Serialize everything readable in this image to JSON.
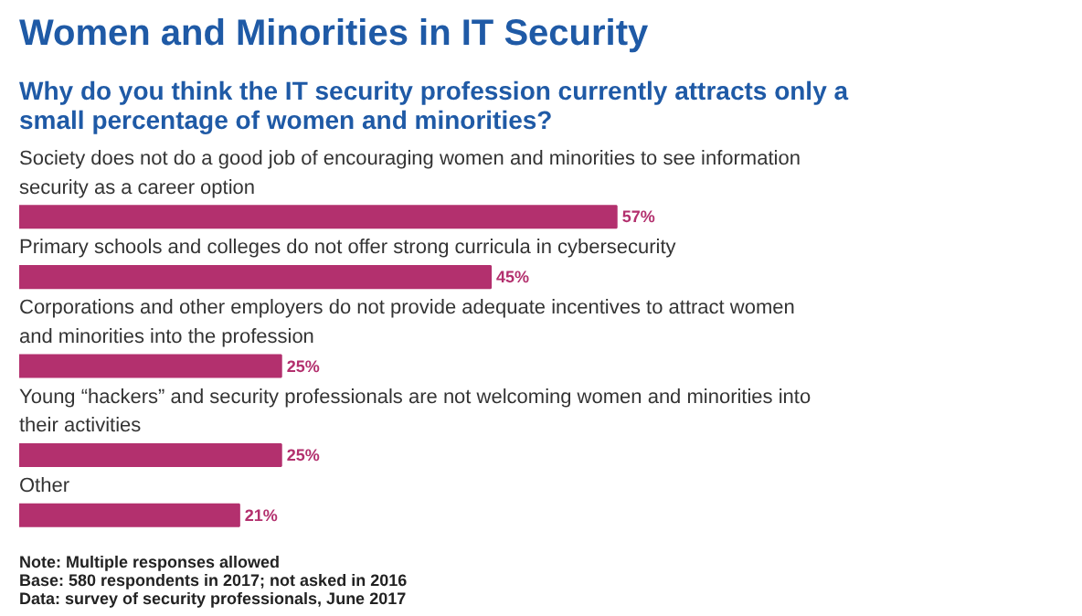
{
  "chart_data": {
    "type": "bar",
    "orientation": "horizontal",
    "title": "Women and Minorities in IT Security",
    "subtitle": "Why do you think the IT security profession currently attracts only a small percentage of women and minorities?",
    "categories": [
      "Society does not do a good job of encouraging women and minorities to see information security as a career option",
      "Primary schools and colleges do not offer strong curricula in cybersecurity",
      "Corporations and other employers do not provide adequate incentives to attract women and minorities into the profession",
      "Young “hackers” and security professionals are not welcoming women and minorities into their activities",
      "Other"
    ],
    "values": [
      57,
      45,
      25,
      25,
      21
    ],
    "value_labels": [
      "57%",
      "45%",
      "25%",
      "25%",
      "21%"
    ],
    "color": "#b3306e",
    "annotations": [
      "Note: Multiple responses allowed",
      "Base: 580 respondents in 2017; not asked in 2016",
      "Data: survey of security professionals, June 2017"
    ]
  }
}
